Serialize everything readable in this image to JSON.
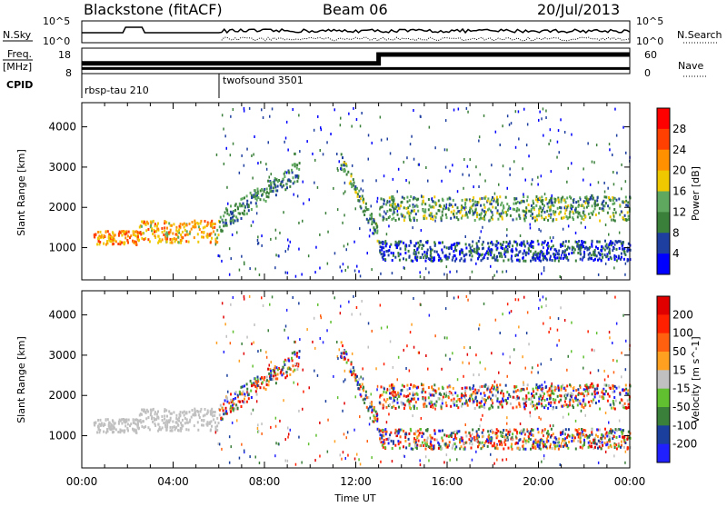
{
  "header": {
    "station": "Blackstone (fitACF)",
    "beam": "Beam 06",
    "date": "20/Jul/2013"
  },
  "noise_panel": {
    "left_label": "N.Sky",
    "right_label": "N.Search",
    "left_ticks": [
      "10^5",
      "10^0"
    ],
    "right_ticks": [
      "10^5",
      "10^0"
    ]
  },
  "freq_panel": {
    "left_label_1": "Freq.",
    "left_label_2": "[MHz]",
    "left_ticks": [
      "18",
      "8"
    ],
    "right_label": "Nave",
    "right_ticks": [
      "60",
      "0"
    ],
    "freq_mhz": 10.0,
    "nave_before_1300": 24,
    "nave_after_1300": 45
  },
  "cpid": {
    "label": "CPID",
    "programs": [
      {
        "name": "rbsp-tau 210",
        "start_ut": "00:00"
      },
      {
        "name": "twofsound 3501",
        "start_ut": "06:00"
      }
    ]
  },
  "colors": {
    "power": [
      "#0000ff",
      "#1f3fa0",
      "#3a7f3a",
      "#5fa85f",
      "#f0c800",
      "#ff9000",
      "#ff4000",
      "#ff0000"
    ],
    "velocity": [
      "#2020ff",
      "#1a3f9c",
      "#3a7f3a",
      "#60c030",
      "#c0c0c0",
      "#ffa020",
      "#ff6010",
      "#ff2000",
      "#e00000"
    ]
  },
  "chart_data": [
    {
      "type": "heatmap",
      "name": "power",
      "ylabel": "Slant Range [km]",
      "y_ticks": [
        "1000",
        "2000",
        "3000",
        "4000"
      ],
      "ylim": [
        200,
        4600
      ],
      "xlim": [
        "00:00",
        "24:00"
      ],
      "colorbar_label": "Power [dB]",
      "colorbar_ticks": [
        "4",
        "8",
        "12",
        "16",
        "20",
        "24",
        "28"
      ],
      "colorbar_range": [
        0,
        32
      ],
      "bands": [
        {
          "t": [
            0.5,
            2.5
          ],
          "range": [
            1100,
            1450
          ],
          "level": 24
        },
        {
          "t": [
            2.5,
            6.0
          ],
          "range": [
            1150,
            1700
          ],
          "level": 22
        },
        {
          "t": [
            6.0,
            9.5
          ],
          "range": [
            1400,
            2900
          ],
          "level": 12
        },
        {
          "t": [
            11.3,
            13.0
          ],
          "range": [
            1100,
            3000
          ],
          "level": 14
        },
        {
          "t": [
            13.0,
            24.0
          ],
          "range": [
            1700,
            2300
          ],
          "level": 14
        },
        {
          "t": [
            13.0,
            24.0
          ],
          "range": [
            700,
            1200
          ],
          "level": 8
        }
      ]
    },
    {
      "type": "heatmap",
      "name": "velocity",
      "ylabel": "Slant Range [km]",
      "y_ticks": [
        "1000",
        "2000",
        "3000",
        "4000"
      ],
      "ylim": [
        200,
        4600
      ],
      "xlim": [
        "00:00",
        "24:00"
      ],
      "xlabel": "Time UT",
      "x_ticks": [
        "00:00",
        "04:00",
        "08:00",
        "12:00",
        "16:00",
        "20:00",
        "00:00"
      ],
      "colorbar_label": "Velocity [m s^-1]",
      "colorbar_ticks": [
        "200",
        "100",
        "50",
        "15",
        "-15",
        "-50",
        "-100",
        "-200"
      ],
      "colorbar_range": [
        -250,
        250
      ]
    }
  ]
}
